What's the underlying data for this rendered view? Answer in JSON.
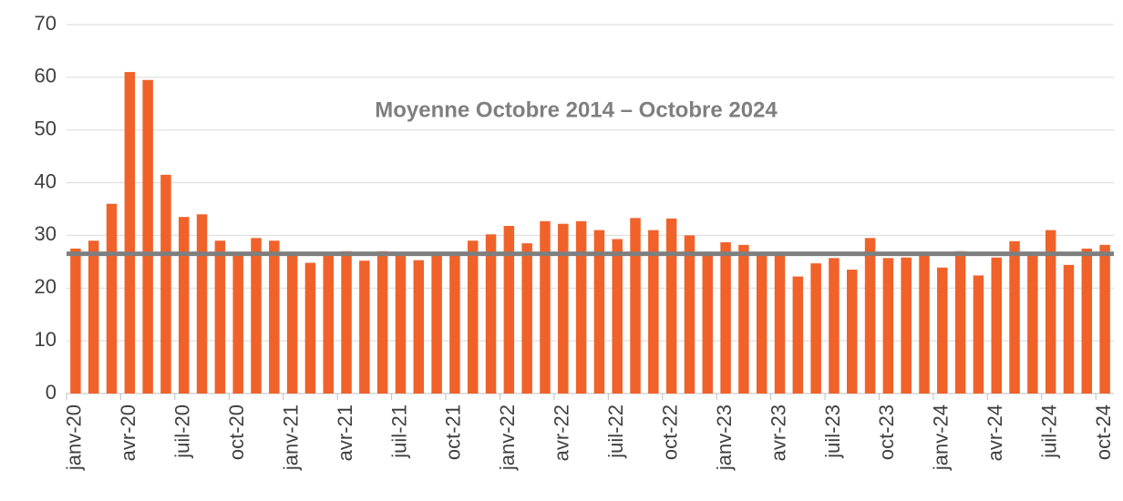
{
  "chart_data": {
    "type": "bar",
    "categories": [
      "janv-20",
      null,
      null,
      "avr-20",
      null,
      null,
      "juil-20",
      null,
      null,
      "oct-20",
      null,
      null,
      "janv-21",
      null,
      null,
      "avr-21",
      null,
      null,
      "juil-21",
      null,
      null,
      "oct-21",
      null,
      null,
      "janv-22",
      null,
      null,
      "avr-22",
      null,
      null,
      "juil-22",
      null,
      null,
      "oct-22",
      null,
      null,
      "janv-23",
      null,
      null,
      "avr-23",
      null,
      null,
      "juil-23",
      null,
      null,
      "oct-23",
      null,
      null,
      "janv-24",
      null,
      null,
      "avr-24",
      null,
      null,
      "juil-24",
      null,
      null,
      "oct-24"
    ],
    "values": [
      27.5,
      29,
      36,
      61,
      59.5,
      41.5,
      33.5,
      34,
      29,
      26.5,
      29.5,
      29,
      26.5,
      24.8,
      26.5,
      27,
      25.2,
      27,
      26.5,
      25.3,
      26.5,
      26.5,
      29,
      30.2,
      31.8,
      28.5,
      32.7,
      32.2,
      32.7,
      31,
      29.3,
      33.3,
      31,
      33.2,
      30,
      26.5,
      28.7,
      28.2,
      26.5,
      26.5,
      22.2,
      24.7,
      25.7,
      23.5,
      29.5,
      25.7,
      25.8,
      26.5,
      23.9,
      27,
      22.4,
      25.8,
      28.9,
      26.5,
      31,
      24.4,
      27.5,
      28.2
    ],
    "color": "#f0622a",
    "reference_line": {
      "value": 26.5,
      "label": "Moyenne Octobre 2014 – Octobre 2024",
      "color": "#7f7f7f"
    },
    "ylim": [
      0,
      70
    ],
    "yticks": [
      0,
      10,
      20,
      30,
      40,
      50,
      60,
      70
    ],
    "grid": true
  }
}
